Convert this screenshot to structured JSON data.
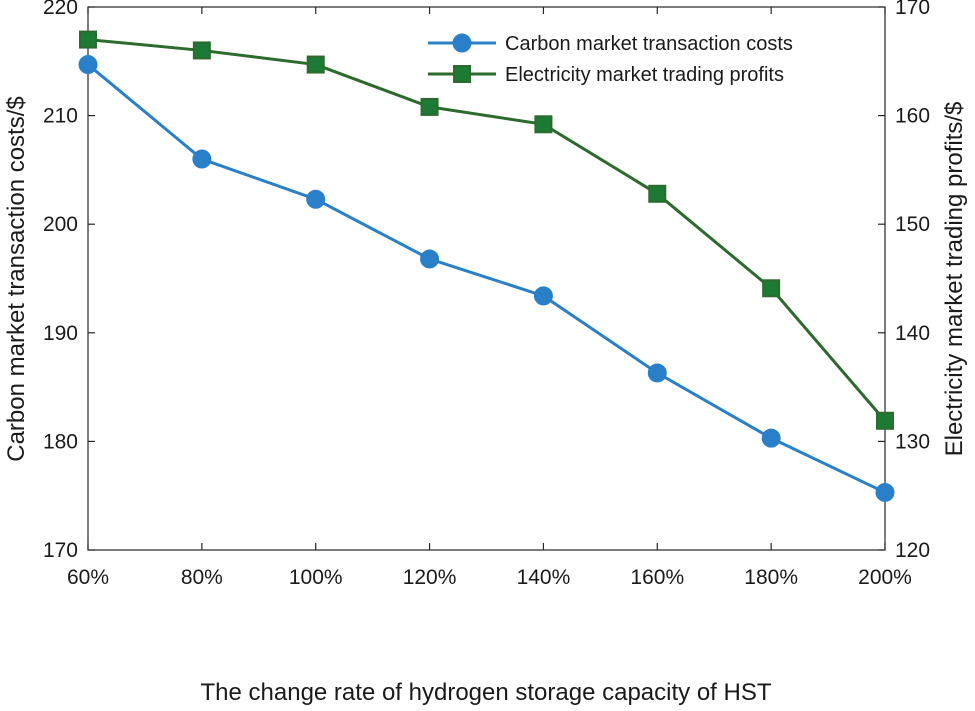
{
  "chart_data": {
    "type": "line",
    "xlabel": "The change rate of hydrogen storage capacity of HST",
    "ylabel_left": "Carbon market transaction costs/$",
    "ylabel_right": "Electricity market trading profits/$",
    "categories": [
      "60%",
      "80%",
      "100%",
      "120%",
      "140%",
      "160%",
      "180%",
      "200%"
    ],
    "x_values": [
      60,
      80,
      100,
      120,
      140,
      160,
      180,
      200
    ],
    "xlim": [
      60,
      200
    ],
    "ylim_left": [
      170,
      220
    ],
    "ylim_right": [
      120,
      170
    ],
    "yticks_left": [
      "170",
      "180",
      "190",
      "200",
      "210",
      "220"
    ],
    "yticks_right": [
      "120",
      "130",
      "140",
      "150",
      "160",
      "170"
    ],
    "grid": false,
    "legend_position": "top-right",
    "series": [
      {
        "name": "Carbon market transaction costs",
        "axis": "left",
        "marker": "circle",
        "color": "#2a80c8",
        "values": [
          214.7,
          206.0,
          202.3,
          196.8,
          193.4,
          186.3,
          180.3,
          175.3
        ]
      },
      {
        "name": "Electricity market trading profits",
        "axis": "right",
        "marker": "square",
        "color": "#2d6a2d",
        "fill": "#1c7a35",
        "values": [
          167.0,
          166.0,
          164.7,
          160.8,
          159.2,
          152.8,
          144.1,
          131.9
        ]
      }
    ]
  }
}
